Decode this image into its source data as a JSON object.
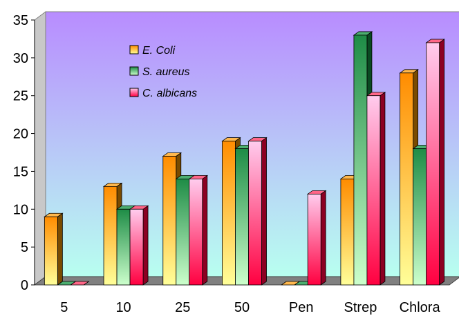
{
  "chart_data": {
    "type": "bar",
    "title": "",
    "xlabel": "",
    "ylabel": "",
    "categories": [
      "5",
      "10",
      "25",
      "50",
      "Pen",
      "Strep",
      "Chlora"
    ],
    "series": [
      {
        "name": "E. Coli",
        "values": [
          9,
          13,
          17,
          19,
          0,
          14,
          28
        ]
      },
      {
        "name": "S. aureus",
        "values": [
          0,
          10,
          14,
          18,
          0,
          33,
          18
        ]
      },
      {
        "name": "C. albicans",
        "values": [
          0,
          10,
          14,
          19,
          12,
          25,
          32
        ]
      }
    ],
    "ylim": [
      0,
      35
    ],
    "yticks": [
      "0",
      "5",
      "10",
      "15",
      "20",
      "25",
      "30",
      "35"
    ],
    "style": "3d-clustered-column",
    "legend_position": "top-left inside plot",
    "colors": {
      "wall_top": "#b88cff",
      "wall_bottom": "#b8fff0",
      "floor": "#808080",
      "E. Coli": [
        "#ff8c00",
        "#ffff99"
      ],
      "S. aureus": [
        "#1e8c46",
        "#ccffcc"
      ],
      "C. albicans": [
        "#ff0040",
        "#ffccee"
      ]
    }
  }
}
